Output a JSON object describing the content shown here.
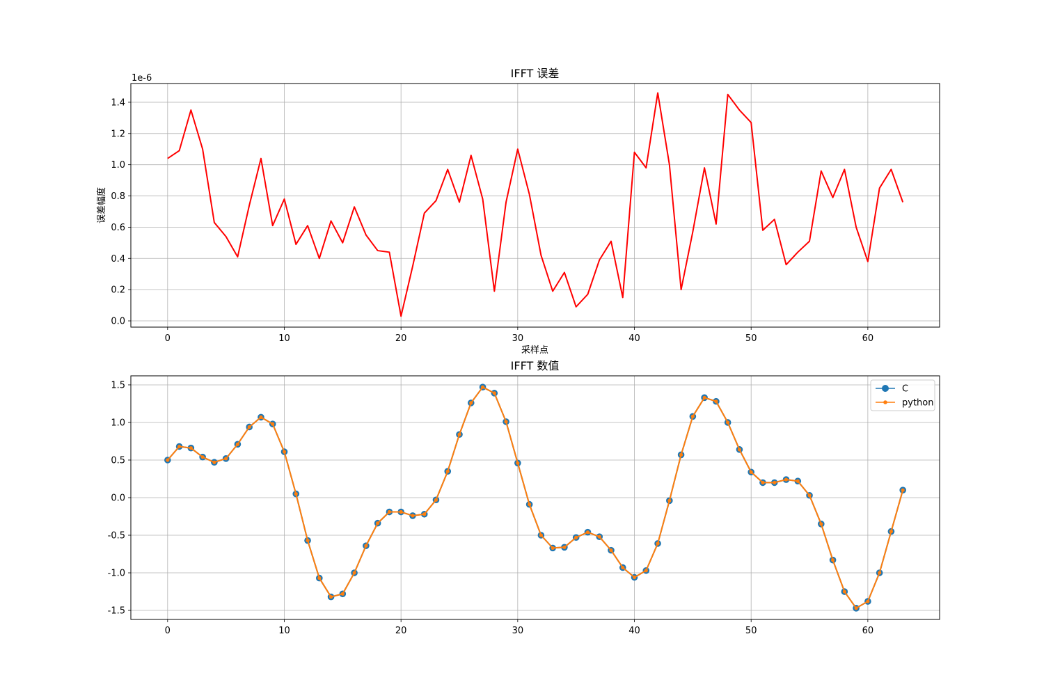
{
  "chart_data": [
    {
      "type": "line",
      "title": "IFFT 误差",
      "xlabel": "采样点",
      "ylabel": "误差幅度",
      "offset_text": "1e-6",
      "xlim": [
        -3.15,
        66.15
      ],
      "ylim": [
        -0.04,
        1.52
      ],
      "xticks": [
        0,
        10,
        20,
        30,
        40,
        50,
        60
      ],
      "xtick_labels": [
        "0",
        "10",
        "20",
        "30",
        "40",
        "50",
        "60"
      ],
      "yticks": [
        0.0,
        0.2,
        0.4,
        0.6,
        0.8,
        1.0,
        1.2,
        1.4
      ],
      "ytick_labels": [
        "0.0",
        "0.2",
        "0.4",
        "0.6",
        "0.8",
        "1.0",
        "1.2",
        "1.4"
      ],
      "grid": true,
      "legend": false,
      "series": [
        {
          "color": "#ff0000",
          "marker": "none",
          "x": [
            0,
            1,
            2,
            3,
            4,
            5,
            6,
            7,
            8,
            9,
            10,
            11,
            12,
            13,
            14,
            15,
            16,
            17,
            18,
            19,
            20,
            21,
            22,
            23,
            24,
            25,
            26,
            27,
            28,
            29,
            30,
            31,
            32,
            33,
            34,
            35,
            36,
            37,
            38,
            39,
            40,
            41,
            42,
            43,
            44,
            45,
            46,
            47,
            48,
            49,
            50,
            51,
            52,
            53,
            54,
            55,
            56,
            57,
            58,
            59,
            60,
            61,
            62,
            63
          ],
          "y": [
            1.04,
            1.09,
            1.35,
            1.1,
            0.63,
            0.54,
            0.41,
            0.74,
            1.04,
            0.61,
            0.78,
            0.49,
            0.61,
            0.4,
            0.64,
            0.5,
            0.73,
            0.55,
            0.45,
            0.44,
            0.03,
            0.35,
            0.69,
            0.77,
            0.97,
            0.76,
            1.06,
            0.78,
            0.19,
            0.76,
            1.1,
            0.81,
            0.42,
            0.19,
            0.31,
            0.09,
            0.17,
            0.39,
            0.51,
            0.15,
            1.08,
            0.98,
            1.46,
            1.0,
            0.2,
            0.57,
            0.98,
            0.62,
            1.45,
            1.35,
            1.27,
            0.58,
            0.65,
            0.36,
            0.44,
            0.51,
            0.96,
            0.79,
            0.97,
            0.6,
            0.38,
            0.85,
            0.97,
            0.76
          ]
        }
      ]
    },
    {
      "type": "line",
      "title": "IFFT 数值",
      "xlabel": "",
      "ylabel": "",
      "xlim": [
        -3.15,
        66.15
      ],
      "ylim": [
        -1.62,
        1.62
      ],
      "xticks": [
        0,
        10,
        20,
        30,
        40,
        50,
        60
      ],
      "xtick_labels": [
        "0",
        "10",
        "20",
        "30",
        "40",
        "50",
        "60"
      ],
      "yticks": [
        -1.5,
        -1.0,
        -0.5,
        0.0,
        0.5,
        1.0,
        1.5
      ],
      "ytick_labels": [
        "-1.5",
        "-1.0",
        "-0.5",
        "0.0",
        "0.5",
        "1.0",
        "1.5"
      ],
      "grid": true,
      "legend": "upper-right",
      "series": [
        {
          "name": "C",
          "color": "#1f77b4",
          "marker": "circle-large",
          "x": [
            0,
            1,
            2,
            3,
            4,
            5,
            6,
            7,
            8,
            9,
            10,
            11,
            12,
            13,
            14,
            15,
            16,
            17,
            18,
            19,
            20,
            21,
            22,
            23,
            24,
            25,
            26,
            27,
            28,
            29,
            30,
            31,
            32,
            33,
            34,
            35,
            36,
            37,
            38,
            39,
            40,
            41,
            42,
            43,
            44,
            45,
            46,
            47,
            48,
            49,
            50,
            51,
            52,
            53,
            54,
            55,
            56,
            57,
            58,
            59,
            60,
            61,
            62,
            63
          ],
          "y": [
            0.5,
            0.68,
            0.66,
            0.54,
            0.47,
            0.52,
            0.71,
            0.94,
            1.07,
            0.98,
            0.61,
            0.05,
            -0.57,
            -1.07,
            -1.32,
            -1.28,
            -1.0,
            -0.64,
            -0.34,
            -0.19,
            -0.19,
            -0.24,
            -0.22,
            -0.03,
            0.35,
            0.84,
            1.26,
            1.47,
            1.39,
            1.01,
            0.46,
            -0.09,
            -0.5,
            -0.67,
            -0.66,
            -0.53,
            -0.46,
            -0.52,
            -0.7,
            -0.93,
            -1.06,
            -0.97,
            -0.61,
            -0.04,
            0.57,
            1.08,
            1.33,
            1.28,
            1.0,
            0.64,
            0.34,
            0.2,
            0.2,
            0.24,
            0.22,
            0.03,
            -0.35,
            -0.83,
            -1.25,
            -1.47,
            -1.38,
            -1.0,
            -0.45,
            0.1
          ]
        },
        {
          "name": "python",
          "color": "#ff7f0e",
          "marker": "circle-small",
          "x": [
            0,
            1,
            2,
            3,
            4,
            5,
            6,
            7,
            8,
            9,
            10,
            11,
            12,
            13,
            14,
            15,
            16,
            17,
            18,
            19,
            20,
            21,
            22,
            23,
            24,
            25,
            26,
            27,
            28,
            29,
            30,
            31,
            32,
            33,
            34,
            35,
            36,
            37,
            38,
            39,
            40,
            41,
            42,
            43,
            44,
            45,
            46,
            47,
            48,
            49,
            50,
            51,
            52,
            53,
            54,
            55,
            56,
            57,
            58,
            59,
            60,
            61,
            62,
            63
          ],
          "y": [
            0.5,
            0.68,
            0.66,
            0.54,
            0.47,
            0.52,
            0.71,
            0.94,
            1.07,
            0.98,
            0.61,
            0.05,
            -0.57,
            -1.07,
            -1.32,
            -1.28,
            -1.0,
            -0.64,
            -0.34,
            -0.19,
            -0.19,
            -0.24,
            -0.22,
            -0.03,
            0.35,
            0.84,
            1.26,
            1.47,
            1.39,
            1.01,
            0.46,
            -0.09,
            -0.5,
            -0.67,
            -0.66,
            -0.53,
            -0.46,
            -0.52,
            -0.7,
            -0.93,
            -1.06,
            -0.97,
            -0.61,
            -0.04,
            0.57,
            1.08,
            1.33,
            1.28,
            1.0,
            0.64,
            0.34,
            0.2,
            0.2,
            0.24,
            0.22,
            0.03,
            -0.35,
            -0.83,
            -1.25,
            -1.47,
            -1.38,
            -1.0,
            -0.45,
            0.1
          ]
        }
      ]
    }
  ]
}
